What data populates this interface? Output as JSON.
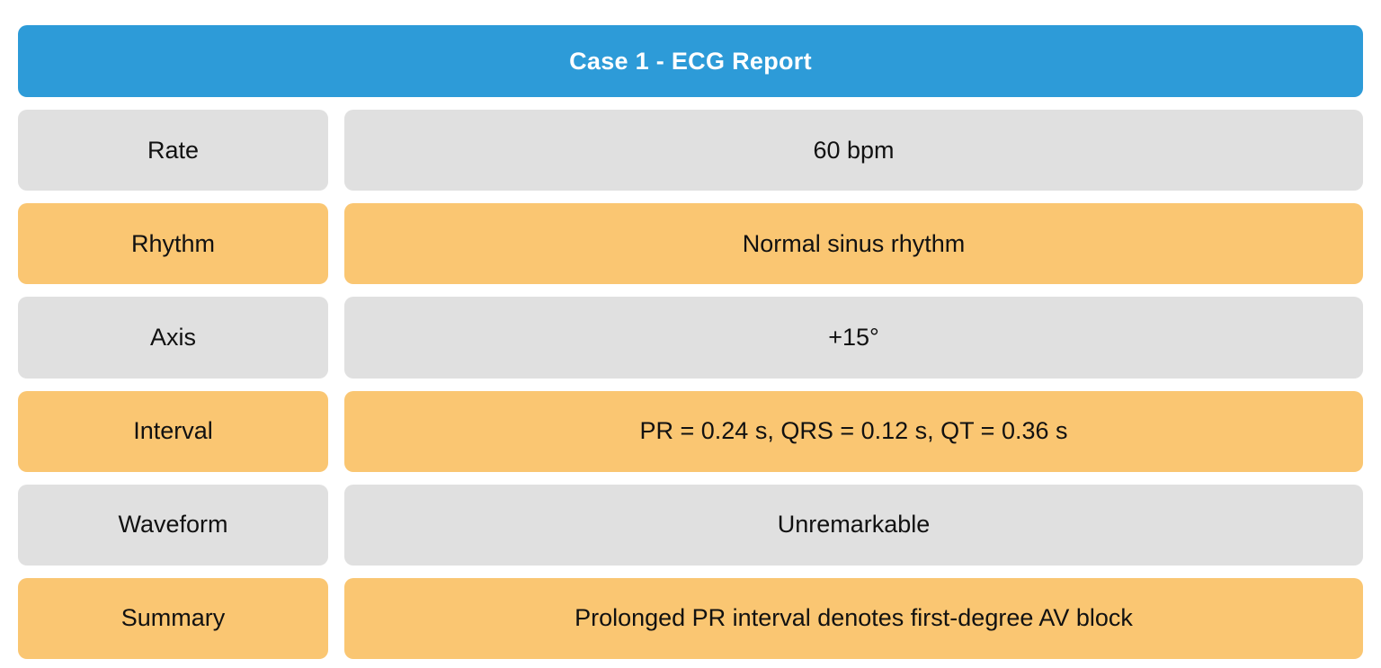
{
  "header": {
    "title": "Case 1 - ECG Report"
  },
  "report": {
    "rows": [
      {
        "label": "Rate",
        "value": "60 bpm",
        "variant": "gray"
      },
      {
        "label": "Rhythm",
        "value": "Normal sinus rhythm",
        "variant": "orange"
      },
      {
        "label": "Axis",
        "value": "+15°",
        "variant": "gray"
      },
      {
        "label": "Interval",
        "value": "PR = 0.24 s, QRS = 0.12 s, QT = 0.36 s",
        "variant": "orange"
      },
      {
        "label": "Waveform",
        "value": "Unremarkable",
        "variant": "gray"
      },
      {
        "label": "Summary",
        "value": "Prolonged PR interval denotes first-degree AV block",
        "variant": "orange"
      }
    ]
  },
  "colors": {
    "header_bg": "#2D9BD8",
    "header_text": "#FFFFFF",
    "row_gray": "#E0E0E0",
    "row_orange": "#FAC672",
    "row_text": "#111111",
    "page_bg": "#FFFFFF"
  }
}
